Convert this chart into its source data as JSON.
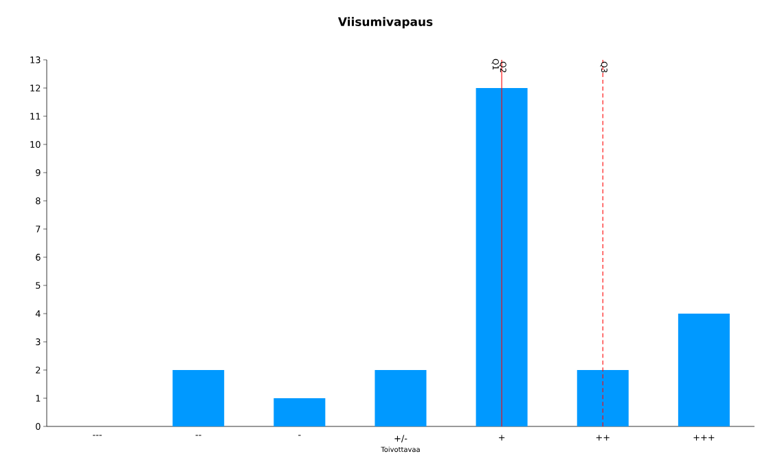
{
  "chart_data": {
    "type": "bar",
    "title": "Viisumivapaus",
    "xlabel": "Toivottavaa",
    "categories": [
      "---",
      "--",
      "-",
      "+/-",
      "+",
      "++",
      "+++"
    ],
    "values": [
      0,
      2,
      1,
      2,
      12,
      2,
      4
    ],
    "color": "#0099ff",
    "ylim": [
      0,
      13
    ],
    "yticks": [
      0,
      1,
      2,
      3,
      4,
      5,
      6,
      7,
      8,
      9,
      10,
      11,
      12,
      13
    ],
    "ref_lines": [
      {
        "axis": "x",
        "value": "+",
        "label": "Q2",
        "color": "#ff0000",
        "line_style": "solid"
      },
      {
        "axis": "x",
        "value": "++",
        "label": "Q3",
        "color": "#ff0000",
        "line_style": "dashed"
      }
    ],
    "annotations": [
      {
        "text": "Q1",
        "x": "+",
        "y": 13
      }
    ]
  }
}
